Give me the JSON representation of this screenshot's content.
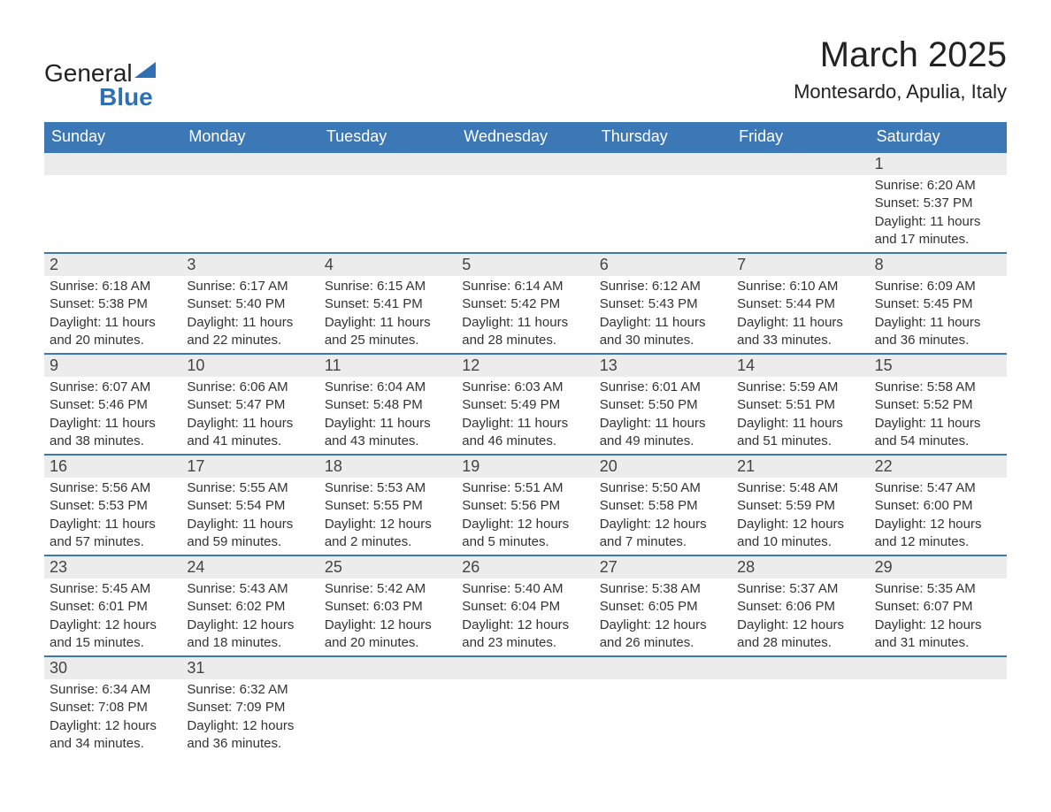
{
  "brand": {
    "name1": "General",
    "name2": "Blue"
  },
  "header": {
    "title": "March 2025",
    "subtitle": "Montesardo, Apulia, Italy"
  },
  "colors": {
    "header_bg": "#3b78b5",
    "header_text": "#ffffff",
    "daynum_bg": "#ececec",
    "border": "#3b78b5",
    "text": "#333333",
    "brand_blue": "#2f6fb3",
    "background": "#ffffff"
  },
  "fonts": {
    "title_size": 40,
    "subtitle_size": 22,
    "header_size": 18,
    "daynum_size": 18,
    "body_size": 15,
    "family": "Arial"
  },
  "calendar": {
    "type": "table",
    "columns": [
      "Sunday",
      "Monday",
      "Tuesday",
      "Wednesday",
      "Thursday",
      "Friday",
      "Saturday"
    ],
    "weeks": [
      [
        null,
        null,
        null,
        null,
        null,
        null,
        {
          "day": "1",
          "sunrise": "Sunrise: 6:20 AM",
          "sunset": "Sunset: 5:37 PM",
          "daylight1": "Daylight: 11 hours",
          "daylight2": "and 17 minutes."
        }
      ],
      [
        {
          "day": "2",
          "sunrise": "Sunrise: 6:18 AM",
          "sunset": "Sunset: 5:38 PM",
          "daylight1": "Daylight: 11 hours",
          "daylight2": "and 20 minutes."
        },
        {
          "day": "3",
          "sunrise": "Sunrise: 6:17 AM",
          "sunset": "Sunset: 5:40 PM",
          "daylight1": "Daylight: 11 hours",
          "daylight2": "and 22 minutes."
        },
        {
          "day": "4",
          "sunrise": "Sunrise: 6:15 AM",
          "sunset": "Sunset: 5:41 PM",
          "daylight1": "Daylight: 11 hours",
          "daylight2": "and 25 minutes."
        },
        {
          "day": "5",
          "sunrise": "Sunrise: 6:14 AM",
          "sunset": "Sunset: 5:42 PM",
          "daylight1": "Daylight: 11 hours",
          "daylight2": "and 28 minutes."
        },
        {
          "day": "6",
          "sunrise": "Sunrise: 6:12 AM",
          "sunset": "Sunset: 5:43 PM",
          "daylight1": "Daylight: 11 hours",
          "daylight2": "and 30 minutes."
        },
        {
          "day": "7",
          "sunrise": "Sunrise: 6:10 AM",
          "sunset": "Sunset: 5:44 PM",
          "daylight1": "Daylight: 11 hours",
          "daylight2": "and 33 minutes."
        },
        {
          "day": "8",
          "sunrise": "Sunrise: 6:09 AM",
          "sunset": "Sunset: 5:45 PM",
          "daylight1": "Daylight: 11 hours",
          "daylight2": "and 36 minutes."
        }
      ],
      [
        {
          "day": "9",
          "sunrise": "Sunrise: 6:07 AM",
          "sunset": "Sunset: 5:46 PM",
          "daylight1": "Daylight: 11 hours",
          "daylight2": "and 38 minutes."
        },
        {
          "day": "10",
          "sunrise": "Sunrise: 6:06 AM",
          "sunset": "Sunset: 5:47 PM",
          "daylight1": "Daylight: 11 hours",
          "daylight2": "and 41 minutes."
        },
        {
          "day": "11",
          "sunrise": "Sunrise: 6:04 AM",
          "sunset": "Sunset: 5:48 PM",
          "daylight1": "Daylight: 11 hours",
          "daylight2": "and 43 minutes."
        },
        {
          "day": "12",
          "sunrise": "Sunrise: 6:03 AM",
          "sunset": "Sunset: 5:49 PM",
          "daylight1": "Daylight: 11 hours",
          "daylight2": "and 46 minutes."
        },
        {
          "day": "13",
          "sunrise": "Sunrise: 6:01 AM",
          "sunset": "Sunset: 5:50 PM",
          "daylight1": "Daylight: 11 hours",
          "daylight2": "and 49 minutes."
        },
        {
          "day": "14",
          "sunrise": "Sunrise: 5:59 AM",
          "sunset": "Sunset: 5:51 PM",
          "daylight1": "Daylight: 11 hours",
          "daylight2": "and 51 minutes."
        },
        {
          "day": "15",
          "sunrise": "Sunrise: 5:58 AM",
          "sunset": "Sunset: 5:52 PM",
          "daylight1": "Daylight: 11 hours",
          "daylight2": "and 54 minutes."
        }
      ],
      [
        {
          "day": "16",
          "sunrise": "Sunrise: 5:56 AM",
          "sunset": "Sunset: 5:53 PM",
          "daylight1": "Daylight: 11 hours",
          "daylight2": "and 57 minutes."
        },
        {
          "day": "17",
          "sunrise": "Sunrise: 5:55 AM",
          "sunset": "Sunset: 5:54 PM",
          "daylight1": "Daylight: 11 hours",
          "daylight2": "and 59 minutes."
        },
        {
          "day": "18",
          "sunrise": "Sunrise: 5:53 AM",
          "sunset": "Sunset: 5:55 PM",
          "daylight1": "Daylight: 12 hours",
          "daylight2": "and 2 minutes."
        },
        {
          "day": "19",
          "sunrise": "Sunrise: 5:51 AM",
          "sunset": "Sunset: 5:56 PM",
          "daylight1": "Daylight: 12 hours",
          "daylight2": "and 5 minutes."
        },
        {
          "day": "20",
          "sunrise": "Sunrise: 5:50 AM",
          "sunset": "Sunset: 5:58 PM",
          "daylight1": "Daylight: 12 hours",
          "daylight2": "and 7 minutes."
        },
        {
          "day": "21",
          "sunrise": "Sunrise: 5:48 AM",
          "sunset": "Sunset: 5:59 PM",
          "daylight1": "Daylight: 12 hours",
          "daylight2": "and 10 minutes."
        },
        {
          "day": "22",
          "sunrise": "Sunrise: 5:47 AM",
          "sunset": "Sunset: 6:00 PM",
          "daylight1": "Daylight: 12 hours",
          "daylight2": "and 12 minutes."
        }
      ],
      [
        {
          "day": "23",
          "sunrise": "Sunrise: 5:45 AM",
          "sunset": "Sunset: 6:01 PM",
          "daylight1": "Daylight: 12 hours",
          "daylight2": "and 15 minutes."
        },
        {
          "day": "24",
          "sunrise": "Sunrise: 5:43 AM",
          "sunset": "Sunset: 6:02 PM",
          "daylight1": "Daylight: 12 hours",
          "daylight2": "and 18 minutes."
        },
        {
          "day": "25",
          "sunrise": "Sunrise: 5:42 AM",
          "sunset": "Sunset: 6:03 PM",
          "daylight1": "Daylight: 12 hours",
          "daylight2": "and 20 minutes."
        },
        {
          "day": "26",
          "sunrise": "Sunrise: 5:40 AM",
          "sunset": "Sunset: 6:04 PM",
          "daylight1": "Daylight: 12 hours",
          "daylight2": "and 23 minutes."
        },
        {
          "day": "27",
          "sunrise": "Sunrise: 5:38 AM",
          "sunset": "Sunset: 6:05 PM",
          "daylight1": "Daylight: 12 hours",
          "daylight2": "and 26 minutes."
        },
        {
          "day": "28",
          "sunrise": "Sunrise: 5:37 AM",
          "sunset": "Sunset: 6:06 PM",
          "daylight1": "Daylight: 12 hours",
          "daylight2": "and 28 minutes."
        },
        {
          "day": "29",
          "sunrise": "Sunrise: 5:35 AM",
          "sunset": "Sunset: 6:07 PM",
          "daylight1": "Daylight: 12 hours",
          "daylight2": "and 31 minutes."
        }
      ],
      [
        {
          "day": "30",
          "sunrise": "Sunrise: 6:34 AM",
          "sunset": "Sunset: 7:08 PM",
          "daylight1": "Daylight: 12 hours",
          "daylight2": "and 34 minutes."
        },
        {
          "day": "31",
          "sunrise": "Sunrise: 6:32 AM",
          "sunset": "Sunset: 7:09 PM",
          "daylight1": "Daylight: 12 hours",
          "daylight2": "and 36 minutes."
        },
        null,
        null,
        null,
        null,
        null
      ]
    ]
  }
}
